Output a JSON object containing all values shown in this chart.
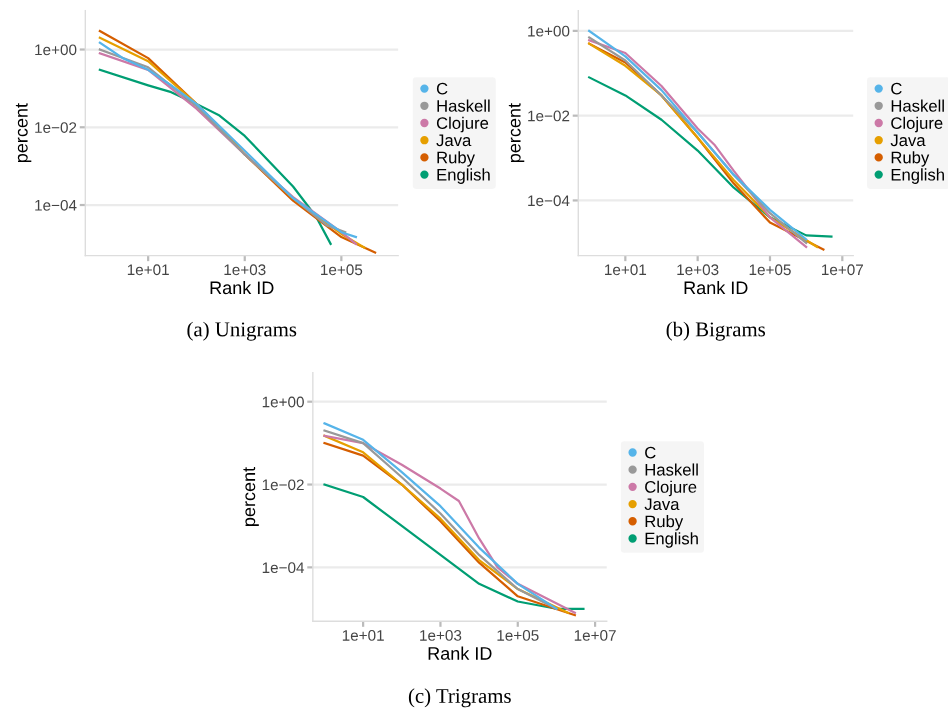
{
  "chart_data": [
    {
      "type": "line",
      "xlabel": "Rank ID",
      "ylabel": "percent",
      "annotations": [
        "(a) Unigrams"
      ],
      "log": "xy",
      "grid": "y",
      "legend": "right",
      "marker": "none",
      "line_style": "solid",
      "xlim": [
        0.5,
        1500000
      ],
      "ylim": [
        5e-06,
        10
      ],
      "xticks": [
        {
          "value": 10,
          "label": "1e+01"
        },
        {
          "value": 1000,
          "label": "1e+03"
        },
        {
          "value": 100000,
          "label": "1e+05"
        }
      ],
      "yticks": [
        {
          "value": 0.0001,
          "label": "1e−04"
        },
        {
          "value": 0.01,
          "label": "1e−02"
        },
        {
          "value": 1,
          "label": "1e+00"
        }
      ],
      "series": [
        {
          "name": "C",
          "color": "#56b4e9",
          "x": [
            1,
            3,
            10,
            30,
            100,
            1000,
            10000,
            100000,
            200000
          ],
          "values": [
            1.5,
            0.6,
            0.3,
            0.12,
            0.04,
            0.0025,
            0.00015,
            2e-05,
            1.5e-05
          ]
        },
        {
          "name": "Haskell",
          "color": "#999999",
          "x": [
            1,
            10,
            100,
            1000,
            10000,
            50000,
            120000
          ],
          "values": [
            1,
            0.35,
            0.035,
            0.002,
            0.00015,
            3e-05,
            2e-05
          ]
        },
        {
          "name": "Clojure",
          "color": "#cc79a7",
          "x": [
            1,
            10,
            100,
            1000,
            10000,
            100000,
            200000
          ],
          "values": [
            0.8,
            0.3,
            0.03,
            0.002,
            0.00016,
            2e-05,
            1e-05
          ]
        },
        {
          "name": "Java",
          "color": "#e69f00",
          "x": [
            1,
            10,
            100,
            1000,
            10000,
            100000,
            300000
          ],
          "values": [
            2,
            0.5,
            0.04,
            0.002,
            0.00015,
            1.8e-05,
            8e-06
          ]
        },
        {
          "name": "Ruby",
          "color": "#d55e00",
          "x": [
            1,
            10,
            100,
            1000,
            10000,
            100000,
            500000
          ],
          "values": [
            3,
            0.6,
            0.04,
            0.002,
            0.00013,
            1.5e-05,
            6e-06
          ]
        },
        {
          "name": "English",
          "color": "#009e73",
          "x": [
            1,
            10,
            30,
            100,
            300,
            1000,
            10000,
            30000,
            60000
          ],
          "values": [
            0.3,
            0.12,
            0.08,
            0.04,
            0.02,
            0.006,
            0.0003,
            5e-05,
            1e-05
          ]
        }
      ]
    },
    {
      "type": "line",
      "xlabel": "Rank ID",
      "ylabel": "percent",
      "annotations": [
        "(b) Bigrams"
      ],
      "log": "xy",
      "grid": "y",
      "legend": "right",
      "marker": "none",
      "line_style": "solid",
      "xlim": [
        0.5,
        20000000
      ],
      "ylim": [
        5e-06,
        3
      ],
      "xticks": [
        {
          "value": 10,
          "label": "1e+01"
        },
        {
          "value": 1000,
          "label": "1e+03"
        },
        {
          "value": 100000,
          "label": "1e+05"
        },
        {
          "value": 10000000,
          "label": "1e+07"
        }
      ],
      "yticks": [
        {
          "value": 0.0001,
          "label": "1e−04"
        },
        {
          "value": 0.01,
          "label": "1e−02"
        },
        {
          "value": 1,
          "label": "1e+00"
        }
      ],
      "series": [
        {
          "name": "C",
          "color": "#56b4e9",
          "x": [
            1,
            10,
            100,
            1000,
            10000,
            100000,
            1000000
          ],
          "values": [
            1,
            0.25,
            0.04,
            0.004,
            0.0004,
            6e-05,
            1.2e-05
          ]
        },
        {
          "name": "Haskell",
          "color": "#999999",
          "x": [
            1,
            10,
            100,
            1000,
            10000,
            100000,
            1000000
          ],
          "values": [
            0.7,
            0.2,
            0.03,
            0.004,
            0.0004,
            5e-05,
            1e-05
          ]
        },
        {
          "name": "Clojure",
          "color": "#cc79a7",
          "x": [
            1,
            10,
            100,
            1000,
            3000,
            10000,
            100000,
            1000000
          ],
          "values": [
            0.6,
            0.3,
            0.05,
            0.005,
            0.002,
            0.0005,
            4e-05,
            8e-06
          ]
        },
        {
          "name": "Java",
          "color": "#e69f00",
          "x": [
            1,
            10,
            100,
            1000,
            10000,
            100000,
            2000000
          ],
          "values": [
            0.5,
            0.15,
            0.03,
            0.003,
            0.0003,
            4e-05,
            8e-06
          ]
        },
        {
          "name": "Ruby",
          "color": "#d55e00",
          "x": [
            1,
            10,
            100,
            1000,
            10000,
            100000,
            3000000
          ],
          "values": [
            0.5,
            0.18,
            0.03,
            0.003,
            0.00025,
            3e-05,
            7e-06
          ]
        },
        {
          "name": "English",
          "color": "#009e73",
          "x": [
            1,
            10,
            100,
            1000,
            10000,
            100000,
            1000000,
            5000000
          ],
          "values": [
            0.08,
            0.03,
            0.008,
            0.0015,
            0.0002,
            4e-05,
            1.5e-05,
            1.4e-05
          ]
        }
      ]
    },
    {
      "type": "line",
      "xlabel": "Rank ID",
      "ylabel": "percent",
      "annotations": [
        "(c) Trigrams"
      ],
      "log": "xy",
      "grid": "y",
      "legend": "right",
      "marker": "none",
      "line_style": "solid",
      "xlim": [
        0.5,
        20000000
      ],
      "ylim": [
        5e-06,
        5
      ],
      "xticks": [
        {
          "value": 10,
          "label": "1e+01"
        },
        {
          "value": 1000,
          "label": "1e+03"
        },
        {
          "value": 100000,
          "label": "1e+05"
        },
        {
          "value": 10000000,
          "label": "1e+07"
        }
      ],
      "yticks": [
        {
          "value": 0.0001,
          "label": "1e−04"
        },
        {
          "value": 0.01,
          "label": "1e−02"
        },
        {
          "value": 1,
          "label": "1e+00"
        }
      ],
      "series": [
        {
          "name": "C",
          "color": "#56b4e9",
          "x": [
            1,
            10,
            100,
            1000,
            10000,
            100000,
            1000000
          ],
          "values": [
            0.3,
            0.12,
            0.02,
            0.003,
            0.0003,
            4e-05,
            1e-05
          ]
        },
        {
          "name": "Haskell",
          "color": "#999999",
          "x": [
            1,
            10,
            100,
            1000,
            10000,
            100000,
            1000000
          ],
          "values": [
            0.2,
            0.1,
            0.015,
            0.002,
            0.0002,
            3e-05,
            1e-05
          ]
        },
        {
          "name": "Clojure",
          "color": "#cc79a7",
          "x": [
            1,
            10,
            100,
            1000,
            3000,
            10000,
            30000,
            100000,
            3000000
          ],
          "values": [
            0.15,
            0.1,
            0.03,
            0.008,
            0.004,
            0.0005,
            0.0001,
            4e-05,
            8e-06
          ]
        },
        {
          "name": "Java",
          "color": "#e69f00",
          "x": [
            1,
            10,
            100,
            1000,
            10000,
            100000,
            2000000
          ],
          "values": [
            0.15,
            0.06,
            0.01,
            0.0015,
            0.00015,
            3e-05,
            8e-06
          ]
        },
        {
          "name": "Ruby",
          "color": "#d55e00",
          "x": [
            1,
            10,
            100,
            1000,
            10000,
            100000,
            3000000
          ],
          "values": [
            0.1,
            0.05,
            0.01,
            0.0013,
            0.00013,
            2e-05,
            7e-06
          ]
        },
        {
          "name": "English",
          "color": "#009e73",
          "x": [
            1,
            10,
            100,
            1000,
            10000,
            100000,
            1000000,
            5000000
          ],
          "values": [
            0.01,
            0.005,
            0.001,
            0.0002,
            4e-05,
            1.5e-05,
            1e-05,
            1e-05
          ]
        }
      ]
    }
  ]
}
